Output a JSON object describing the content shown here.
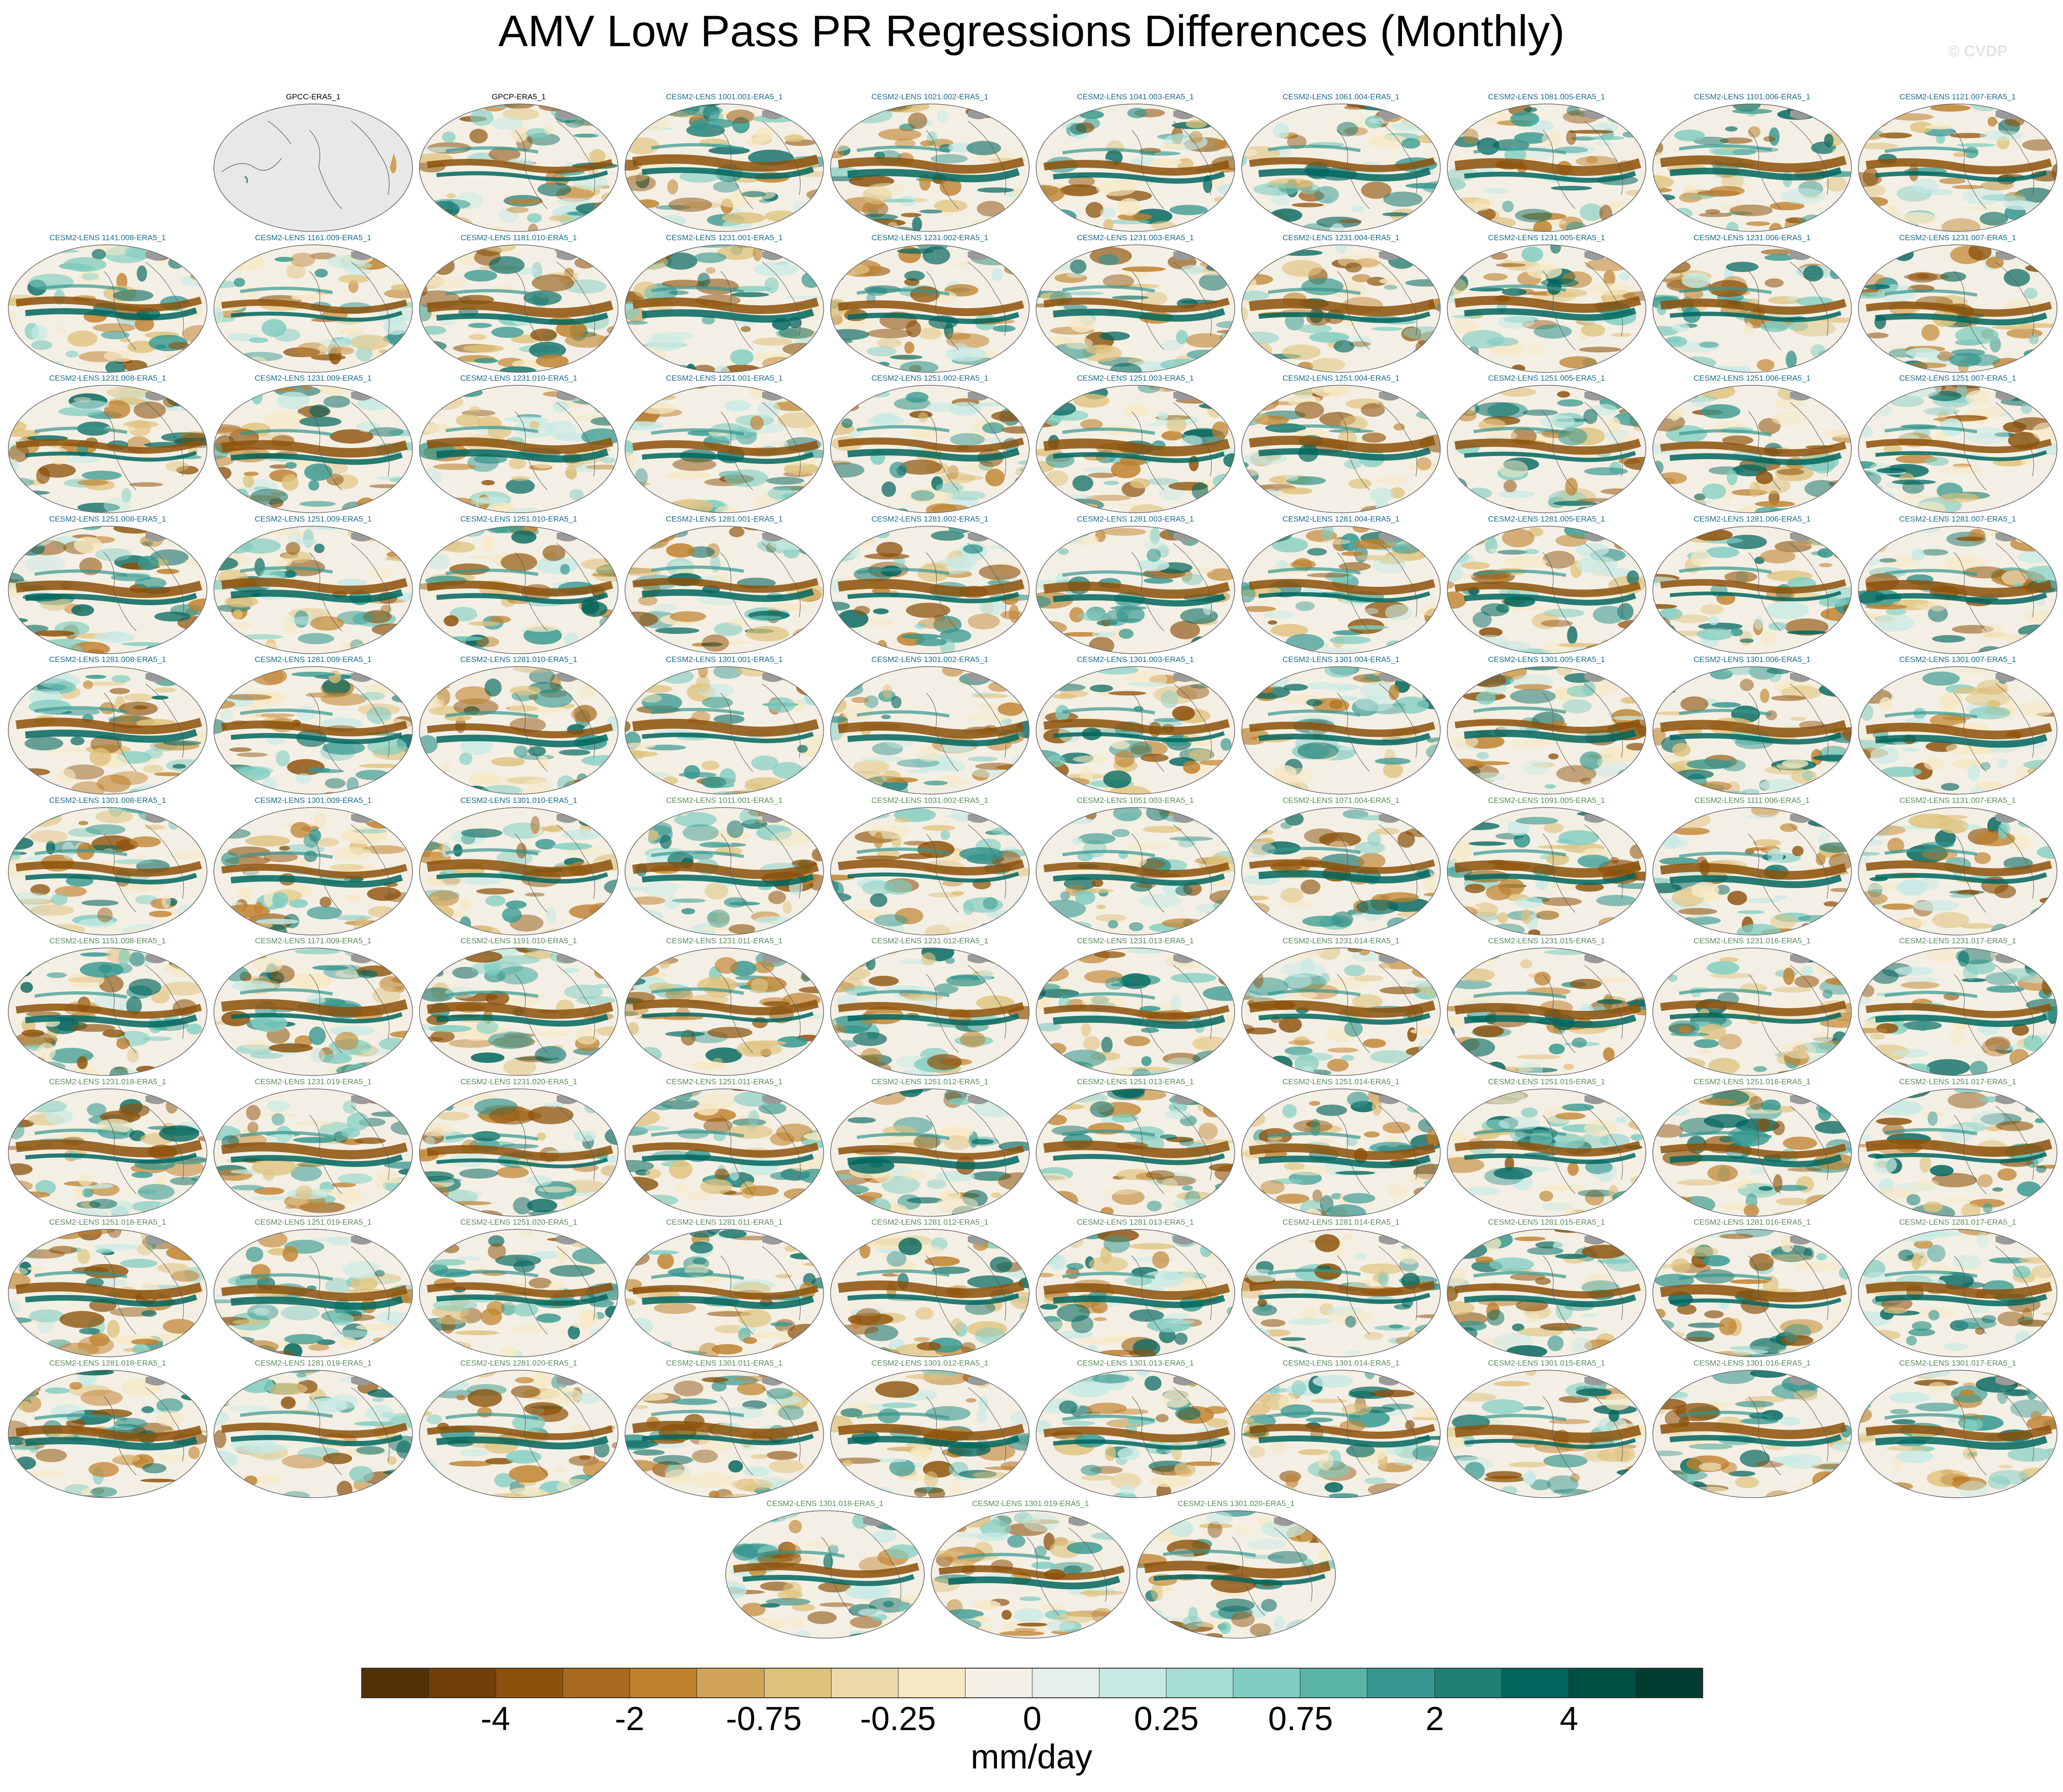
{
  "title": "AMV Low Pass PR Regressions Differences (Monthly)",
  "watermark": "© CVDP",
  "panels": [
    {
      "label": "GPCC-ERA5_1",
      "group": "obs",
      "map": "gpcc"
    },
    {
      "label": "GPCP-ERA5_1",
      "group": "obs",
      "map": "full"
    },
    {
      "label": "CESM2-LENS 1001.001-ERA5_1",
      "group": "lens1",
      "map": "full"
    },
    {
      "label": "CESM2-LENS 1021.002-ERA5_1",
      "group": "lens1",
      "map": "full"
    },
    {
      "label": "CESM2-LENS 1041.003-ERA5_1",
      "group": "lens1",
      "map": "full"
    },
    {
      "label": "CESM2-LENS 1061.004-ERA5_1",
      "group": "lens1",
      "map": "full"
    },
    {
      "label": "CESM2-LENS 1081.005-ERA5_1",
      "group": "lens1",
      "map": "full"
    },
    {
      "label": "CESM2-LENS 1101.006-ERA5_1",
      "group": "lens1",
      "map": "full"
    },
    {
      "label": "CESM2-LENS 1121.007-ERA5_1",
      "group": "lens1",
      "map": "full"
    },
    {
      "label": "CESM2-LENS 1141.008-ERA5_1",
      "group": "lens1",
      "map": "full"
    },
    {
      "label": "CESM2-LENS 1161.009-ERA5_1",
      "group": "lens1",
      "map": "full"
    },
    {
      "label": "CESM2-LENS 1181.010-ERA5_1",
      "group": "lens1",
      "map": "full"
    },
    {
      "label": "CESM2-LENS 1231.001-ERA5_1",
      "group": "lens1",
      "map": "full"
    },
    {
      "label": "CESM2-LENS 1231.002-ERA5_1",
      "group": "lens1",
      "map": "full"
    },
    {
      "label": "CESM2-LENS 1231.003-ERA5_1",
      "group": "lens1",
      "map": "full"
    },
    {
      "label": "CESM2-LENS 1231.004-ERA5_1",
      "group": "lens1",
      "map": "full"
    },
    {
      "label": "CESM2-LENS 1231.005-ERA5_1",
      "group": "lens1",
      "map": "full"
    },
    {
      "label": "CESM2-LENS 1231.006-ERA5_1",
      "group": "lens1",
      "map": "full"
    },
    {
      "label": "CESM2-LENS 1231.007-ERA5_1",
      "group": "lens1",
      "map": "full"
    },
    {
      "label": "CESM2-LENS 1231.008-ERA5_1",
      "group": "lens1",
      "map": "full"
    },
    {
      "label": "CESM2-LENS 1231.009-ERA5_1",
      "group": "lens1",
      "map": "full"
    },
    {
      "label": "CESM2-LENS 1231.010-ERA5_1",
      "group": "lens1",
      "map": "full"
    },
    {
      "label": "CESM2-LENS 1251.001-ERA5_1",
      "group": "lens1",
      "map": "full"
    },
    {
      "label": "CESM2-LENS 1251.002-ERA5_1",
      "group": "lens1",
      "map": "full"
    },
    {
      "label": "CESM2-LENS 1251.003-ERA5_1",
      "group": "lens1",
      "map": "full"
    },
    {
      "label": "CESM2-LENS 1251.004-ERA5_1",
      "group": "lens1",
      "map": "full"
    },
    {
      "label": "CESM2-LENS 1251.005-ERA5_1",
      "group": "lens1",
      "map": "full"
    },
    {
      "label": "CESM2-LENS 1251.006-ERA5_1",
      "group": "lens1",
      "map": "full"
    },
    {
      "label": "CESM2-LENS 1251.007-ERA5_1",
      "group": "lens1",
      "map": "full"
    },
    {
      "label": "CESM2-LENS 1251.008-ERA5_1",
      "group": "lens1",
      "map": "full"
    },
    {
      "label": "CESM2-LENS 1251.009-ERA5_1",
      "group": "lens1",
      "map": "full"
    },
    {
      "label": "CESM2-LENS 1251.010-ERA5_1",
      "group": "lens1",
      "map": "full"
    },
    {
      "label": "CESM2-LENS 1281.001-ERA5_1",
      "group": "lens1",
      "map": "full"
    },
    {
      "label": "CESM2-LENS 1281.002-ERA5_1",
      "group": "lens1",
      "map": "full"
    },
    {
      "label": "CESM2-LENS 1281.003-ERA5_1",
      "group": "lens1",
      "map": "full"
    },
    {
      "label": "CESM2-LENS 1281.004-ERA5_1",
      "group": "lens1",
      "map": "full"
    },
    {
      "label": "CESM2-LENS 1281.005-ERA5_1",
      "group": "lens1",
      "map": "full"
    },
    {
      "label": "CESM2-LENS 1281.006-ERA5_1",
      "group": "lens1",
      "map": "full"
    },
    {
      "label": "CESM2-LENS 1281.007-ERA5_1",
      "group": "lens1",
      "map": "full"
    },
    {
      "label": "CESM2-LENS 1281.008-ERA5_1",
      "group": "lens1",
      "map": "full"
    },
    {
      "label": "CESM2-LENS 1281.009-ERA5_1",
      "group": "lens1",
      "map": "full"
    },
    {
      "label": "CESM2-LENS 1281.010-ERA5_1",
      "group": "lens1",
      "map": "full"
    },
    {
      "label": "CESM2-LENS 1301.001-ERA5_1",
      "group": "lens1",
      "map": "full"
    },
    {
      "label": "CESM2-LENS 1301.002-ERA5_1",
      "group": "lens1",
      "map": "full"
    },
    {
      "label": "CESM2-LENS 1301.003-ERA5_1",
      "group": "lens1",
      "map": "full"
    },
    {
      "label": "CESM2-LENS 1301.004-ERA5_1",
      "group": "lens1",
      "map": "full"
    },
    {
      "label": "CESM2-LENS 1301.005-ERA5_1",
      "group": "lens1",
      "map": "full"
    },
    {
      "label": "CESM2-LENS 1301.006-ERA5_1",
      "group": "lens1",
      "map": "full"
    },
    {
      "label": "CESM2-LENS 1301.007-ERA5_1",
      "group": "lens1",
      "map": "full"
    },
    {
      "label": "CESM2-LENS 1301.008-ERA5_1",
      "group": "lens1",
      "map": "full"
    },
    {
      "label": "CESM2-LENS 1301.009-ERA5_1",
      "group": "lens1",
      "map": "full"
    },
    {
      "label": "CESM2-LENS 1301.010-ERA5_1",
      "group": "lens1",
      "map": "full"
    },
    {
      "label": "CESM2-LENS 1011.001-ERA5_1",
      "group": "lens2",
      "map": "full"
    },
    {
      "label": "CESM2-LENS 1031.002-ERA5_1",
      "group": "lens2",
      "map": "full"
    },
    {
      "label": "CESM2-LENS 1051.003-ERA5_1",
      "group": "lens2",
      "map": "full"
    },
    {
      "label": "CESM2-LENS 1071.004-ERA5_1",
      "group": "lens2",
      "map": "full"
    },
    {
      "label": "CESM2-LENS 1091.005-ERA5_1",
      "group": "lens2",
      "map": "full"
    },
    {
      "label": "CESM2-LENS 1111.006-ERA5_1",
      "group": "lens2",
      "map": "full"
    },
    {
      "label": "CESM2-LENS 1131.007-ERA5_1",
      "group": "lens2",
      "map": "full"
    },
    {
      "label": "CESM2-LENS 1151.008-ERA5_1",
      "group": "lens2",
      "map": "full"
    },
    {
      "label": "CESM2-LENS 1171.009-ERA5_1",
      "group": "lens2",
      "map": "full"
    },
    {
      "label": "CESM2-LENS 1191.010-ERA5_1",
      "group": "lens2",
      "map": "full"
    },
    {
      "label": "CESM2-LENS 1231.011-ERA5_1",
      "group": "lens2",
      "map": "full"
    },
    {
      "label": "CESM2-LENS 1231.012-ERA5_1",
      "group": "lens2",
      "map": "full"
    },
    {
      "label": "CESM2-LENS 1231.013-ERA5_1",
      "group": "lens2",
      "map": "full"
    },
    {
      "label": "CESM2-LENS 1231.014-ERA5_1",
      "group": "lens2",
      "map": "full"
    },
    {
      "label": "CESM2-LENS 1231.015-ERA5_1",
      "group": "lens2",
      "map": "full"
    },
    {
      "label": "CESM2-LENS 1231.016-ERA5_1",
      "group": "lens2",
      "map": "full"
    },
    {
      "label": "CESM2-LENS 1231.017-ERA5_1",
      "group": "lens2",
      "map": "full"
    },
    {
      "label": "CESM2-LENS 1231.018-ERA5_1",
      "group": "lens2",
      "map": "full"
    },
    {
      "label": "CESM2-LENS 1231.019-ERA5_1",
      "group": "lens2",
      "map": "full"
    },
    {
      "label": "CESM2-LENS 1231.020-ERA5_1",
      "group": "lens2",
      "map": "full"
    },
    {
      "label": "CESM2-LENS 1251.011-ERA5_1",
      "group": "lens2",
      "map": "full"
    },
    {
      "label": "CESM2-LENS 1251.012-ERA5_1",
      "group": "lens2",
      "map": "full"
    },
    {
      "label": "CESM2-LENS 1251.013-ERA5_1",
      "group": "lens2",
      "map": "full"
    },
    {
      "label": "CESM2-LENS 1251.014-ERA5_1",
      "group": "lens2",
      "map": "full"
    },
    {
      "label": "CESM2-LENS 1251.015-ERA5_1",
      "group": "lens2",
      "map": "full"
    },
    {
      "label": "CESM2-LENS 1251.016-ERA5_1",
      "group": "lens2",
      "map": "full"
    },
    {
      "label": "CESM2-LENS 1251.017-ERA5_1",
      "group": "lens2",
      "map": "full"
    },
    {
      "label": "CESM2-LENS 1251.018-ERA5_1",
      "group": "lens2",
      "map": "full"
    },
    {
      "label": "CESM2-LENS 1251.019-ERA5_1",
      "group": "lens2",
      "map": "full"
    },
    {
      "label": "CESM2-LENS 1251.020-ERA5_1",
      "group": "lens2",
      "map": "full"
    },
    {
      "label": "CESM2-LENS 1281.011-ERA5_1",
      "group": "lens2",
      "map": "full"
    },
    {
      "label": "CESM2-LENS 1281.012-ERA5_1",
      "group": "lens2",
      "map": "full"
    },
    {
      "label": "CESM2-LENS 1281.013-ERA5_1",
      "group": "lens2",
      "map": "full"
    },
    {
      "label": "CESM2-LENS 1281.014-ERA5_1",
      "group": "lens2",
      "map": "full"
    },
    {
      "label": "CESM2-LENS 1281.015-ERA5_1",
      "group": "lens2",
      "map": "full"
    },
    {
      "label": "CESM2-LENS 1281.016-ERA5_1",
      "group": "lens2",
      "map": "full"
    },
    {
      "label": "CESM2-LENS 1281.017-ERA5_1",
      "group": "lens2",
      "map": "full"
    },
    {
      "label": "CESM2-LENS 1281.018-ERA5_1",
      "group": "lens2",
      "map": "full"
    },
    {
      "label": "CESM2-LENS 1281.019-ERA5_1",
      "group": "lens2",
      "map": "full"
    },
    {
      "label": "CESM2-LENS 1281.020-ERA5_1",
      "group": "lens2",
      "map": "full"
    },
    {
      "label": "CESM2-LENS 1301.011-ERA5_1",
      "group": "lens2",
      "map": "full"
    },
    {
      "label": "CESM2-LENS 1301.012-ERA5_1",
      "group": "lens2",
      "map": "full"
    },
    {
      "label": "CESM2-LENS 1301.013-ERA5_1",
      "group": "lens2",
      "map": "full"
    },
    {
      "label": "CESM2-LENS 1301.014-ERA5_1",
      "group": "lens2",
      "map": "full"
    },
    {
      "label": "CESM2-LENS 1301.015-ERA5_1",
      "group": "lens2",
      "map": "full"
    },
    {
      "label": "CESM2-LENS 1301.016-ERA5_1",
      "group": "lens2",
      "map": "full"
    },
    {
      "label": "CESM2-LENS 1301.017-ERA5_1",
      "group": "lens2",
      "map": "full"
    },
    {
      "label": "CESM2-LENS 1301.018-ERA5_1",
      "group": "lens2",
      "map": "full"
    },
    {
      "label": "CESM2-LENS 1301.019-ERA5_1",
      "group": "lens2",
      "map": "full"
    },
    {
      "label": "CESM2-LENS 1301.020-ERA5_1",
      "group": "lens2",
      "map": "full"
    }
  ],
  "colorbar": {
    "colors": [
      "#543005",
      "#6f3e0a",
      "#8c510a",
      "#a86a20",
      "#bf812d",
      "#d2a45a",
      "#dfc27d",
      "#ecd9a8",
      "#f6e8c3",
      "#f5f0e6",
      "#e6efec",
      "#c7eae5",
      "#a6ddd4",
      "#80cdc1",
      "#5ab4a5",
      "#35978f",
      "#1f7f75",
      "#01665e",
      "#004f45",
      "#003c30"
    ],
    "ticks": [
      "-4",
      "-2",
      "-0.75",
      "-0.25",
      "0",
      "0.25",
      "0.75",
      "2",
      "4"
    ],
    "units": "mm/day"
  }
}
